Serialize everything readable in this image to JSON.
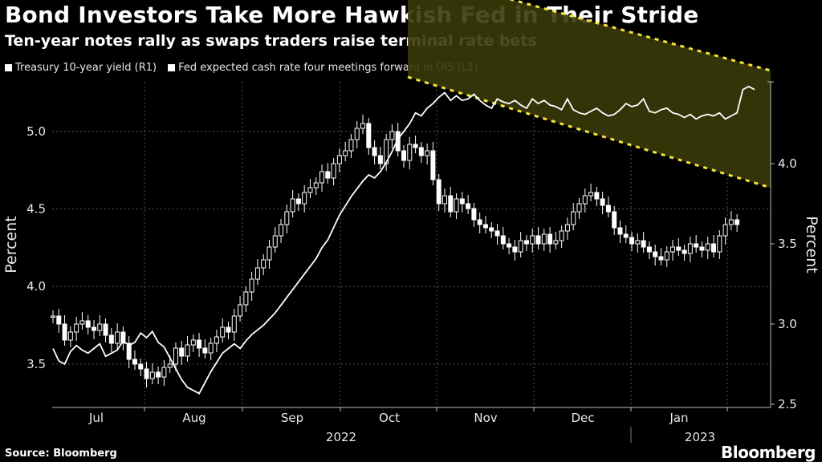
{
  "header": {
    "title": "Bond Investors Take More Hawkish Fed in Their Stride",
    "subtitle": "Ten-year notes rally as swaps traders raise terminal rate bets"
  },
  "legend": {
    "items": [
      {
        "label": "Treasury 10-year yield (R1)"
      },
      {
        "label": "Fed expected cash rate four meetings forward in OIS (L1)"
      }
    ]
  },
  "footer": {
    "source": "Source: Bloomberg",
    "brand": "Bloomberg"
  },
  "colors": {
    "background": "#000000",
    "line": "#ffffff",
    "candle": "#ffffff",
    "channel_fill": "#3a3a0a",
    "channel_border": "#f5e43a",
    "grid": "#555555"
  },
  "chart_data": {
    "type": "line",
    "title": "Bond Investors Take More Hawkish Fed in Their Stride",
    "left_axis": {
      "label": "Percent",
      "ticks": [
        "3.5",
        "4.0",
        "4.5",
        "5.0"
      ],
      "range": [
        3.22,
        5.32
      ]
    },
    "right_axis": {
      "label": "Percent",
      "ticks": [
        "2.5",
        "3.0",
        "3.5",
        "4.0"
      ],
      "range": [
        2.48,
        4.51
      ]
    },
    "x_labels": [
      "Jul",
      "Aug",
      "Sep",
      "Oct",
      "Nov",
      "Dec",
      "Jan"
    ],
    "year_labels": [
      "2022",
      "2023"
    ],
    "series": [
      {
        "name": "Fed expected cash rate four meetings forward in OIS (L1)",
        "axis": "left",
        "style": "line",
        "values": [
          3.6,
          3.52,
          3.5,
          3.58,
          3.62,
          3.59,
          3.57,
          3.6,
          3.63,
          3.55,
          3.57,
          3.59,
          3.65,
          3.62,
          3.64,
          3.7,
          3.67,
          3.71,
          3.64,
          3.61,
          3.54,
          3.47,
          3.4,
          3.35,
          3.33,
          3.31,
          3.38,
          3.45,
          3.51,
          3.57,
          3.6,
          3.63,
          3.6,
          3.65,
          3.69,
          3.72,
          3.75,
          3.79,
          3.83,
          3.88,
          3.93,
          3.98,
          4.03,
          4.08,
          4.13,
          4.18,
          4.25,
          4.3,
          4.38,
          4.46,
          4.52,
          4.58,
          4.63,
          4.68,
          4.72,
          4.7,
          4.74,
          4.8,
          4.87,
          4.95,
          5.0,
          5.05,
          5.12,
          5.1,
          5.15,
          5.18,
          5.22,
          5.25,
          5.2,
          5.23,
          5.2,
          5.21,
          5.24,
          5.2,
          5.17,
          5.15,
          5.21,
          5.19,
          5.18,
          5.2,
          5.17,
          5.15,
          5.21,
          5.18,
          5.2,
          5.17,
          5.16,
          5.14,
          5.21,
          5.14,
          5.12,
          5.11,
          5.13,
          5.15,
          5.12,
          5.1,
          5.11,
          5.14,
          5.18,
          5.16,
          5.17,
          5.21,
          5.13,
          5.12,
          5.14,
          5.15,
          5.12,
          5.11,
          5.09,
          5.11,
          5.08,
          5.1,
          5.11,
          5.1,
          5.12,
          5.08,
          5.1,
          5.12,
          5.27,
          5.29,
          5.27
        ]
      },
      {
        "name": "Treasury 10-year yield (R1)",
        "axis": "right",
        "style": "candlestick",
        "values": [
          3.05,
          3.0,
          2.9,
          2.95,
          3.0,
          3.02,
          2.98,
          2.96,
          3.0,
          2.93,
          2.88,
          2.95,
          2.88,
          2.78,
          2.75,
          2.72,
          2.66,
          2.7,
          2.67,
          2.73,
          2.75,
          2.85,
          2.8,
          2.87,
          2.9,
          2.85,
          2.82,
          2.88,
          2.92,
          2.98,
          2.95,
          3.05,
          3.12,
          3.2,
          3.28,
          3.35,
          3.4,
          3.48,
          3.55,
          3.62,
          3.7,
          3.78,
          3.75,
          3.82,
          3.85,
          3.88,
          3.95,
          3.91,
          4.0,
          4.05,
          4.08,
          4.15,
          4.22,
          4.25,
          4.1,
          4.05,
          4.0,
          4.15,
          4.2,
          4.08,
          4.02,
          4.12,
          4.1,
          4.05,
          4.08,
          3.9,
          3.75,
          3.8,
          3.7,
          3.78,
          3.75,
          3.72,
          3.65,
          3.62,
          3.6,
          3.58,
          3.55,
          3.5,
          3.48,
          3.45,
          3.52,
          3.5,
          3.55,
          3.5,
          3.56,
          3.5,
          3.52,
          3.58,
          3.62,
          3.7,
          3.75,
          3.8,
          3.82,
          3.78,
          3.74,
          3.7,
          3.6,
          3.56,
          3.54,
          3.5,
          3.52,
          3.48,
          3.45,
          3.42,
          3.4,
          3.45,
          3.48,
          3.46,
          3.44,
          3.5,
          3.48,
          3.46,
          3.5,
          3.45,
          3.55,
          3.62,
          3.65,
          3.62
        ]
      }
    ],
    "channel": {
      "left_upper": 5.2,
      "left_lower": 4.54,
      "right_upper": 4.58,
      "right_lower": 3.85
    }
  }
}
